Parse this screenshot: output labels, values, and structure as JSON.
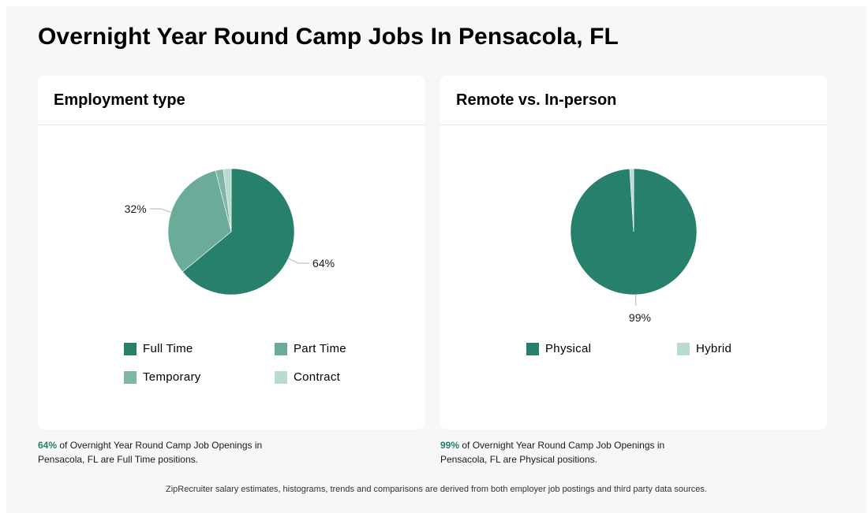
{
  "page": {
    "title": "Overnight Year Round Camp Jobs In Pensacola, FL",
    "footer": "ZipRecruiter salary estimates, histograms, trends and comparisons are derived from both employer job postings and third party data sources."
  },
  "chart_data": [
    {
      "type": "pie",
      "title": "Employment type",
      "categories": [
        "Full Time",
        "Part Time",
        "Temporary",
        "Contract"
      ],
      "values": [
        64,
        32,
        2,
        2
      ],
      "colors": [
        "#26806b",
        "#6aab99",
        "#7fb6a6",
        "#b9dad1"
      ],
      "data_labels": [
        "64%",
        "32%",
        "",
        ""
      ],
      "legend_placement": "bottom"
    },
    {
      "type": "pie",
      "title": "Remote vs. In-person",
      "categories": [
        "Physical",
        "Hybrid"
      ],
      "values": [
        99,
        1
      ],
      "colors": [
        "#26806b",
        "#b9dad1"
      ],
      "data_labels": [
        "99%",
        ""
      ],
      "legend_placement": "bottom"
    }
  ],
  "captions": [
    {
      "pct": "64%",
      "text": " of Overnight Year Round Camp Job Openings in Pensacola, FL are Full Time positions."
    },
    {
      "pct": "99%",
      "text": " of Overnight Year Round Camp Job Openings in Pensacola, FL are Physical positions."
    }
  ]
}
